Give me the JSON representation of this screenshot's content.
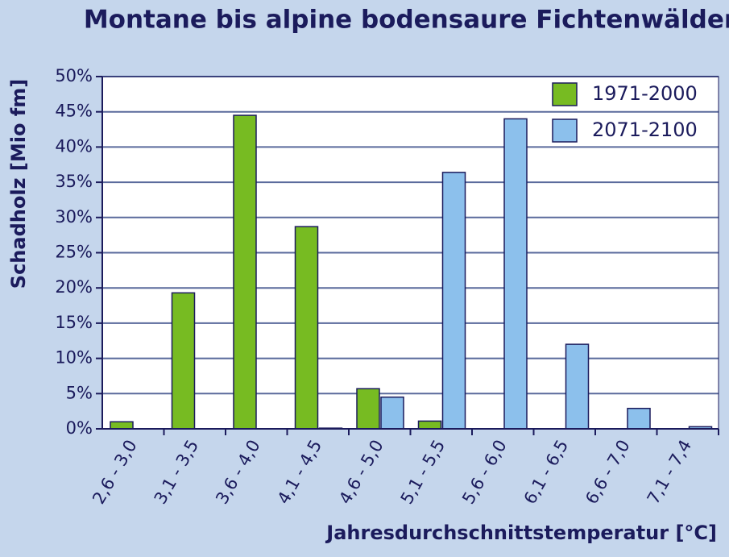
{
  "chart_data": {
    "type": "bar",
    "title": "Montane bis alpine bodensaure Fichtenwälder",
    "x_label": "Jahresdurchschnittstemperatur [°C]",
    "y_label": "Schadholz [Mio fm]",
    "categories": [
      "2,6 - 3,0",
      "3,1 - 3,5",
      "3,6 - 4,0",
      "4,1 - 4,5",
      "4,6 - 5,0",
      "5,1 - 5,5",
      "5,6 - 6,0",
      "6,1 - 6,5",
      "6,6 - 7,0",
      "7,1 - 7,4"
    ],
    "series": [
      {
        "name": "1971-2000",
        "color": "#77bb22",
        "values": [
          1.0,
          19.3,
          44.5,
          28.7,
          5.7,
          1.1,
          0,
          0,
          0,
          0
        ]
      },
      {
        "name": "2071-2100",
        "color": "#8cc0ec",
        "values": [
          0,
          0,
          0,
          0.1,
          4.5,
          36.4,
          44.0,
          12.0,
          2.9,
          0.3
        ]
      }
    ],
    "ylim": [
      0,
      50
    ],
    "yticks": [
      {
        "value": 0,
        "label": "0%"
      },
      {
        "value": 5,
        "label": "5%"
      },
      {
        "value": 10,
        "label": "10%"
      },
      {
        "value": 15,
        "label": "15%"
      },
      {
        "value": 20,
        "label": "20%"
      },
      {
        "value": 25,
        "label": "25%"
      },
      {
        "value": 30,
        "label": "30%"
      },
      {
        "value": 35,
        "label": "35%"
      },
      {
        "value": 40,
        "label": "40%"
      },
      {
        "value": 45,
        "label": "45%"
      },
      {
        "value": 50,
        "label": "50%"
      }
    ],
    "grid": true,
    "legend": "top-right"
  }
}
